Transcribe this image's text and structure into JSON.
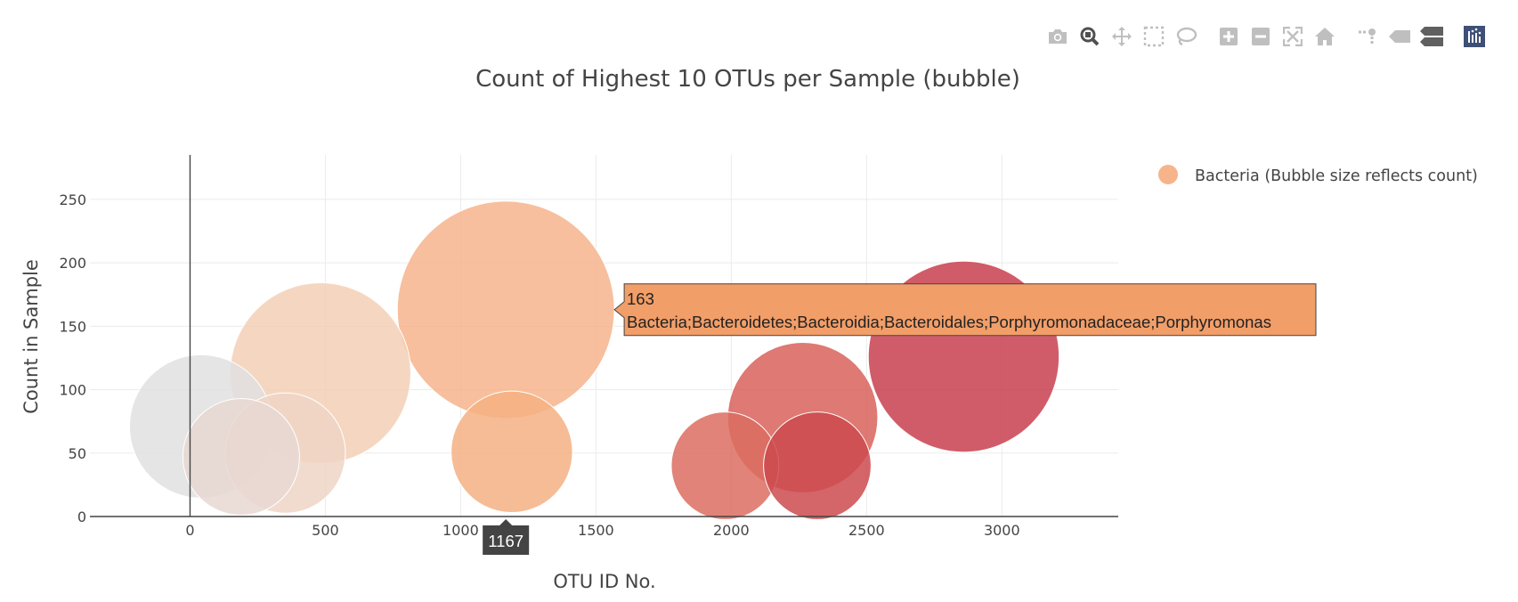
{
  "modebar": {
    "buttons": [
      "camera-icon",
      "zoom-icon",
      "pan-icon",
      "box-select-icon",
      "lasso-icon",
      "zoom-in-icon",
      "zoom-out-icon",
      "autoscale-icon",
      "reset-axes-icon",
      "spike-lines-icon",
      "hover-closest-icon",
      "hover-compare-icon",
      "plotly-logo-icon"
    ]
  },
  "chart_data": {
    "type": "scatter",
    "title": "Count of Highest 10 OTUs per Sample (bubble)",
    "xlabel": "OTU ID No.",
    "ylabel": "Count in Sample",
    "xlim": [
      -370,
      3430
    ],
    "ylim": [
      0,
      285
    ],
    "x_ticks": [
      0,
      500,
      1000,
      1500,
      2000,
      2500,
      3000
    ],
    "y_ticks": [
      0,
      50,
      100,
      150,
      200,
      250
    ],
    "grid": true,
    "legend_position": "top-right",
    "series": [
      {
        "name": "Bacteria (Bubble size reflects count)",
        "legend_color": "#f7b48b",
        "points": [
          {
            "x": 41,
            "y": 71,
            "color": "#e0e0e0"
          },
          {
            "x": 189,
            "y": 47,
            "color": "#e8d8d2"
          },
          {
            "x": 352,
            "y": 50,
            "color": "#eed5c5"
          },
          {
            "x": 482,
            "y": 113,
            "color": "#f3d0b6"
          },
          {
            "x": 1167,
            "y": 163,
            "color": "#f6b48c"
          },
          {
            "x": 1189,
            "y": 51,
            "color": "#f5b083"
          },
          {
            "x": 1977,
            "y": 40,
            "color": "#dc6d60"
          },
          {
            "x": 2264,
            "y": 78,
            "color": "#d8615b"
          },
          {
            "x": 2318,
            "y": 40,
            "color": "#cd4a4e"
          },
          {
            "x": 2859,
            "y": 126,
            "color": "#c8404f"
          }
        ]
      }
    ],
    "hover": {
      "value": "163",
      "label": "Bacteria;Bacteroidetes;Bacteroidia;Bacteroidales;Porphyromonadaceae;Porphyromonas",
      "x_value": "1167",
      "bg_color": "#f29e68",
      "spike_color": "#444444"
    }
  }
}
